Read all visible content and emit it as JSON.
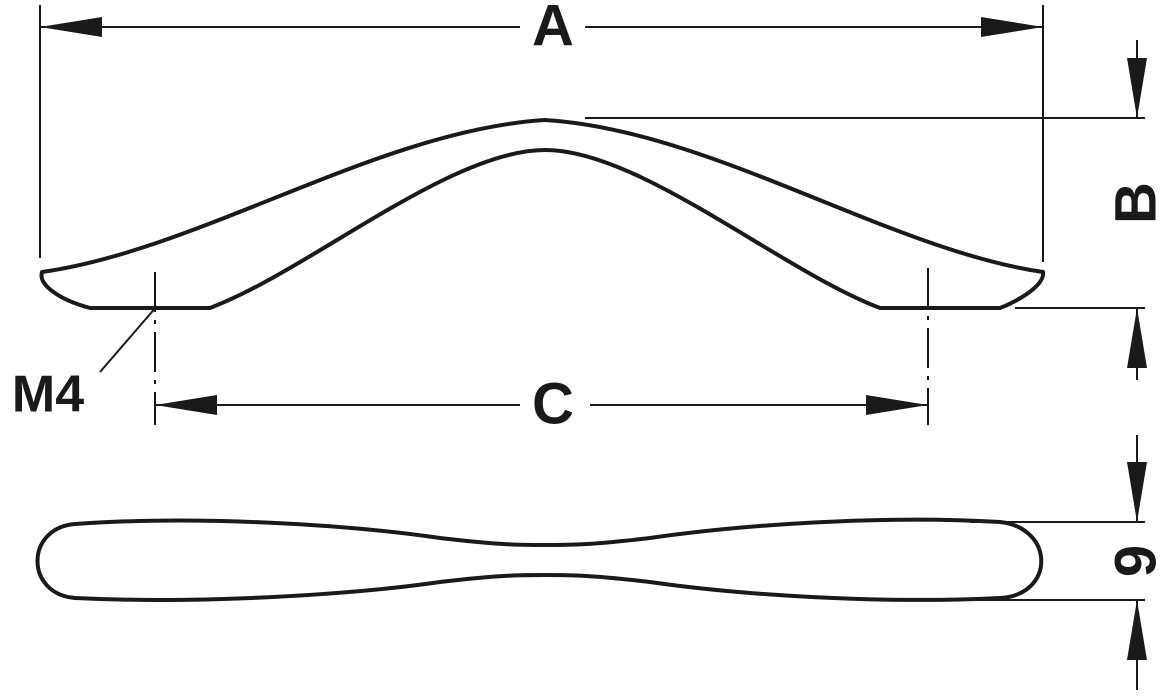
{
  "dimensions": {
    "a": "A",
    "b": "B",
    "c": "C",
    "thread": "M4",
    "thickness": "9"
  }
}
